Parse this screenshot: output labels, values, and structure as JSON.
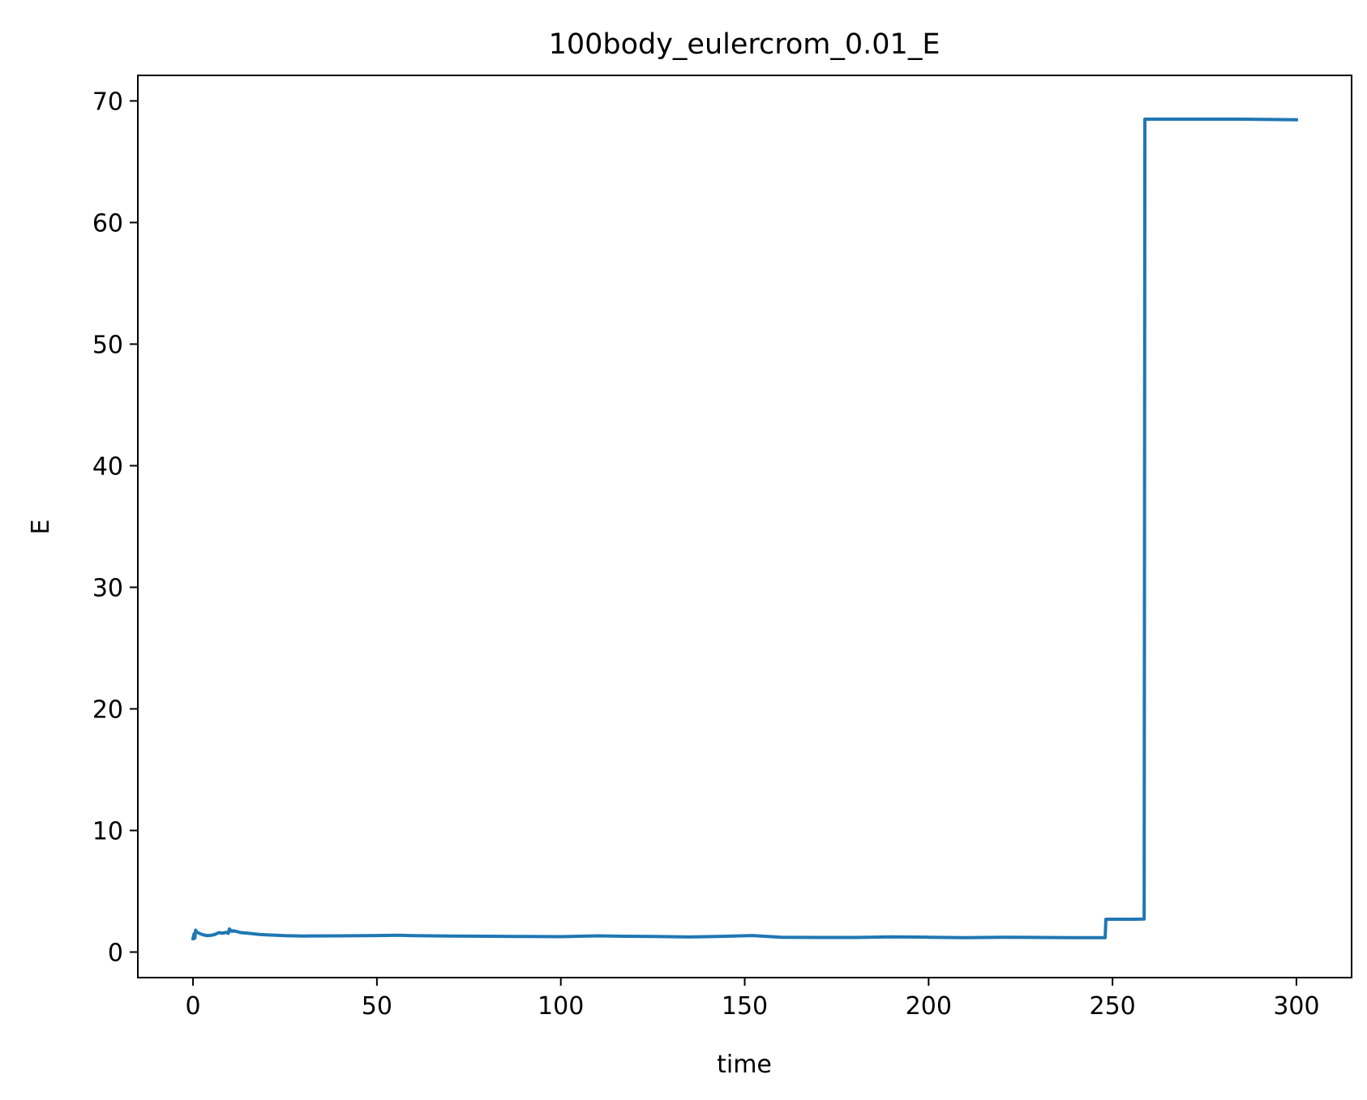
{
  "chart_data": {
    "type": "line",
    "title": "100body_eulercrom_0.01_E",
    "xlabel": "time",
    "ylabel": "E",
    "xlim": [
      -15,
      315
    ],
    "ylim": [
      -2.1,
      72.1
    ],
    "xticks": [
      0,
      50,
      100,
      150,
      200,
      250,
      300
    ],
    "yticks": [
      0,
      10,
      20,
      30,
      40,
      50,
      60,
      70
    ],
    "xtick_labels": [
      "0",
      "50",
      "100",
      "150",
      "200",
      "250",
      "300"
    ],
    "ytick_labels": [
      "0",
      "10",
      "20",
      "30",
      "40",
      "50",
      "60",
      "70"
    ],
    "grid": false,
    "series": [
      {
        "color": "#1f77b4",
        "x": [
          0,
          0.3,
          0.5,
          0.7,
          1.0,
          2,
          3,
          4,
          5,
          6,
          7,
          8,
          9,
          9.6,
          9.9,
          10.2,
          10.6,
          11,
          12,
          13,
          15,
          18,
          20,
          25,
          30,
          40,
          50,
          56,
          60,
          70,
          80,
          90,
          100,
          110,
          117,
          125,
          135,
          145,
          152,
          160,
          170,
          180,
          190,
          200,
          210,
          220,
          230,
          240,
          248,
          248.2,
          255,
          258.6,
          258.8,
          270,
          285,
          300
        ],
        "y": [
          1.1,
          1.5,
          1.15,
          1.8,
          1.65,
          1.5,
          1.4,
          1.35,
          1.38,
          1.45,
          1.6,
          1.55,
          1.62,
          1.55,
          1.9,
          1.8,
          1.7,
          1.75,
          1.68,
          1.6,
          1.55,
          1.45,
          1.42,
          1.35,
          1.32,
          1.33,
          1.36,
          1.38,
          1.35,
          1.32,
          1.3,
          1.28,
          1.27,
          1.33,
          1.3,
          1.28,
          1.24,
          1.3,
          1.36,
          1.22,
          1.2,
          1.2,
          1.25,
          1.22,
          1.18,
          1.22,
          1.2,
          1.18,
          1.18,
          2.7,
          2.7,
          2.72,
          68.5,
          68.5,
          68.5,
          68.45
        ]
      }
    ]
  }
}
